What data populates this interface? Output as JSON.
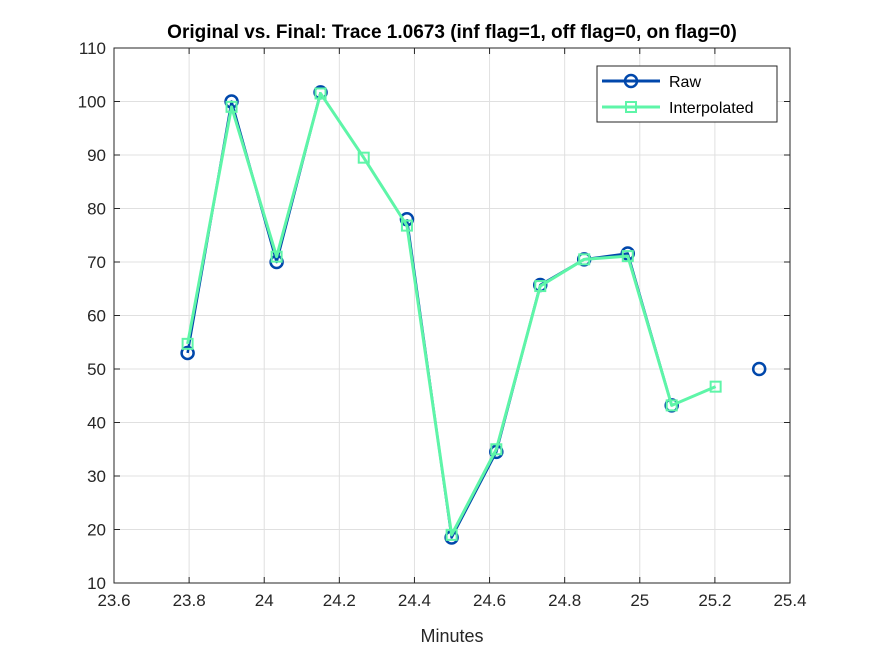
{
  "chart_data": {
    "type": "line",
    "title": "Original vs. Final: Trace 1.0673 (inf flag=1, off flag=0, on flag=0)",
    "xlabel": "Minutes",
    "ylabel": "",
    "xlim": [
      23.6,
      25.4
    ],
    "ylim": [
      10,
      110
    ],
    "xticks": [
      "23.6",
      "23.8",
      "24",
      "24.2",
      "24.4",
      "24.6",
      "24.8",
      "25",
      "25.2",
      "25.4"
    ],
    "yticks": [
      "10",
      "20",
      "30",
      "40",
      "50",
      "60",
      "70",
      "80",
      "90",
      "100",
      "110"
    ],
    "grid": true,
    "legend_position": "top-right",
    "series": [
      {
        "name": "Raw",
        "color": "#0047AB",
        "marker": "circle",
        "segments": [
          [
            [
              23.796,
              53.0
            ],
            [
              23.913,
              100.0
            ],
            [
              24.033,
              70.0
            ],
            [
              24.15,
              101.7
            ]
          ],
          [
            [
              24.38,
              78.0
            ],
            [
              24.499,
              18.5
            ],
            [
              24.618,
              34.5
            ],
            [
              24.735,
              65.7
            ],
            [
              24.852,
              70.5
            ],
            [
              24.968,
              71.6
            ],
            [
              25.085,
              43.2
            ]
          ],
          [
            [
              25.318,
              50.0
            ]
          ]
        ]
      },
      {
        "name": "Interpolated",
        "color": "#5EF5A8",
        "marker": "square",
        "segments": [
          [
            [
              23.796,
              54.7
            ],
            [
              23.913,
              99.0
            ],
            [
              24.033,
              71.0
            ],
            [
              24.15,
              101.5
            ],
            [
              24.265,
              89.5
            ],
            [
              24.38,
              76.8
            ],
            [
              24.499,
              19.0
            ],
            [
              24.618,
              35.0
            ],
            [
              24.735,
              65.5
            ],
            [
              24.852,
              70.5
            ],
            [
              24.968,
              71.1
            ],
            [
              25.085,
              43.2
            ],
            [
              25.202,
              46.7
            ]
          ]
        ]
      }
    ]
  }
}
